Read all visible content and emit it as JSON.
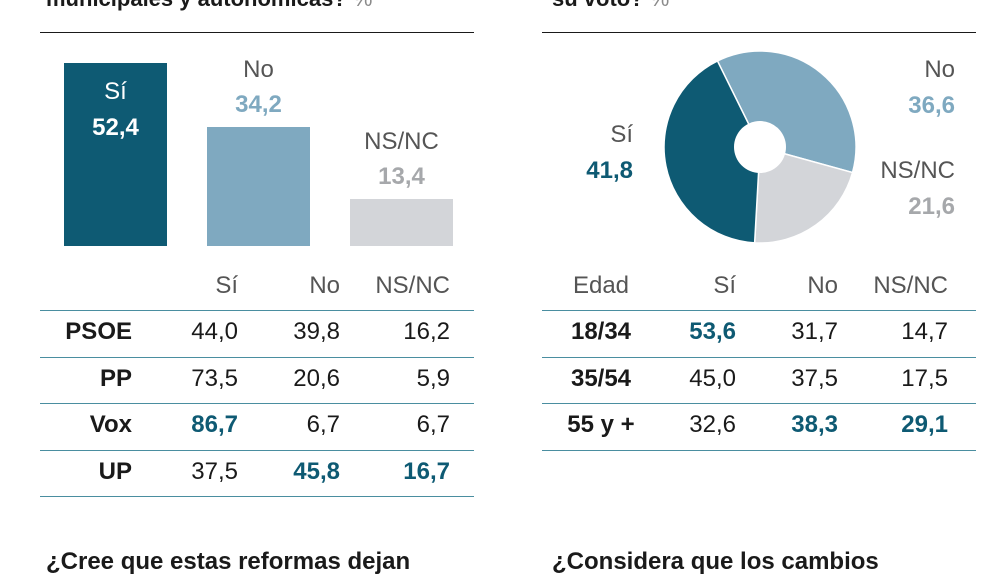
{
  "colors": {
    "si": "#0e5a73",
    "no": "#7fa9c0",
    "nsnc": "#d3d5d9",
    "highlight": "#0e5a73"
  },
  "left": {
    "title_cut": "municipales y autonómicas?",
    "unit": "%",
    "footer_cut": "¿Cree que estas reformas dejan",
    "table": {
      "columns": [
        "Sí",
        "No",
        "NS/NC"
      ],
      "rows": [
        {
          "label": "PSOE",
          "values": [
            "44,0",
            "39,8",
            "16,2"
          ],
          "highlight": []
        },
        {
          "label": "PP",
          "values": [
            "73,5",
            "20,6",
            "5,9"
          ],
          "highlight": []
        },
        {
          "label": "Vox",
          "values": [
            "86,7",
            "6,7",
            "6,7"
          ],
          "highlight": [
            0
          ]
        },
        {
          "label": "UP",
          "values": [
            "37,5",
            "45,8",
            "16,7"
          ],
          "highlight": [
            1,
            2
          ]
        }
      ]
    }
  },
  "right": {
    "title_cut": "su voto?",
    "unit": "%",
    "footer_cut": "¿Considera que los cambios",
    "table": {
      "first_col": "Edad",
      "columns": [
        "Sí",
        "No",
        "NS/NC"
      ],
      "rows": [
        {
          "label": "18/34",
          "values": [
            "53,6",
            "31,7",
            "14,7"
          ],
          "highlight": [
            0
          ]
        },
        {
          "label": "35/54",
          "values": [
            "45,0",
            "37,5",
            "17,5"
          ],
          "highlight": []
        },
        {
          "label": "55 y +",
          "values": [
            "32,6",
            "38,3",
            "29,1"
          ],
          "highlight": [
            1,
            2
          ]
        }
      ]
    }
  },
  "chart_data": [
    {
      "type": "bar",
      "categories": [
        "Sí",
        "No",
        "NS/NC"
      ],
      "values": [
        52.4,
        34.2,
        13.4
      ],
      "value_labels": [
        "52,4",
        "34,2",
        "13,4"
      ],
      "ylim": [
        0,
        60
      ]
    },
    {
      "type": "pie",
      "labels": [
        "No",
        "NS/NC",
        "Sí"
      ],
      "values": [
        36.6,
        21.6,
        41.8
      ],
      "value_labels": [
        "36,6",
        "21,6",
        "41,8"
      ]
    }
  ]
}
